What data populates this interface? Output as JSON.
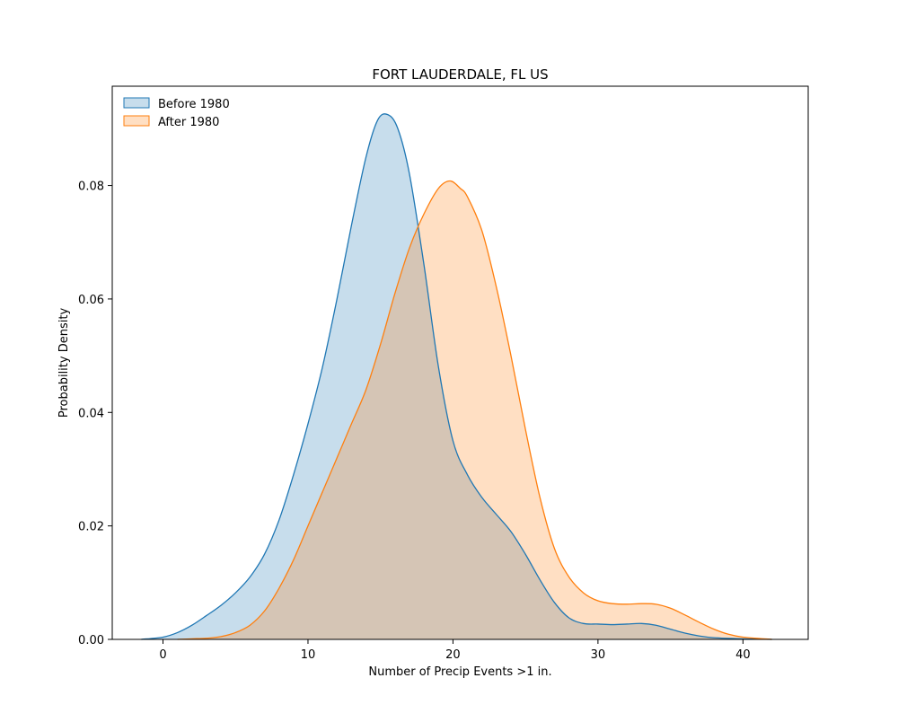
{
  "chart_data": {
    "type": "area",
    "title": "FORT LAUDERDALE, FL US",
    "xlabel": "Number of Precip Events >1 in.",
    "ylabel": "Probability Density",
    "xlim": [
      -3.5,
      44.5
    ],
    "ylim": [
      0,
      0.0975
    ],
    "x_ticks": [
      0,
      10,
      20,
      30,
      40
    ],
    "y_ticks": [
      0.0,
      0.02,
      0.04,
      0.06,
      0.08
    ],
    "x_tick_labels": [
      "0",
      "10",
      "20",
      "30",
      "40"
    ],
    "y_tick_labels": [
      "0.00",
      "0.02",
      "0.04",
      "0.06",
      "0.08"
    ],
    "grid": false,
    "legend": "top-left",
    "series": [
      {
        "name": "Before 1980",
        "color": "#1f77b4",
        "x": [
          -1.5,
          0,
          1,
          2,
          3,
          4,
          5,
          6,
          7,
          8,
          9,
          10,
          11,
          12,
          13,
          14,
          14.8,
          15.5,
          16.2,
          17,
          18,
          19,
          20,
          21,
          22,
          23,
          24,
          25,
          26,
          27,
          28,
          29,
          30,
          31,
          32,
          33,
          34,
          35,
          36,
          37,
          38,
          40,
          42
        ],
        "y": [
          0.0,
          0.0004,
          0.0012,
          0.0025,
          0.0042,
          0.006,
          0.0082,
          0.011,
          0.015,
          0.021,
          0.029,
          0.038,
          0.048,
          0.06,
          0.073,
          0.085,
          0.0915,
          0.0925,
          0.09,
          0.082,
          0.066,
          0.048,
          0.035,
          0.029,
          0.025,
          0.022,
          0.019,
          0.015,
          0.0105,
          0.0065,
          0.0038,
          0.0028,
          0.0027,
          0.0026,
          0.0027,
          0.0028,
          0.0025,
          0.0018,
          0.0011,
          0.0006,
          0.0003,
          0.0001,
          0.0
        ]
      },
      {
        "name": "After 1980",
        "color": "#ff7f0e",
        "x": [
          1,
          2,
          3,
          4,
          5,
          6,
          7,
          8,
          9,
          10,
          11,
          12,
          13,
          14,
          15,
          16,
          17,
          18,
          19,
          19.8,
          20.5,
          21,
          22,
          23,
          24,
          25,
          26,
          27,
          28,
          29,
          30,
          31,
          32,
          33,
          34,
          35,
          36,
          37,
          38,
          39,
          40,
          42
        ],
        "y": [
          0.0,
          0.0001,
          0.0002,
          0.0005,
          0.0012,
          0.0025,
          0.005,
          0.009,
          0.014,
          0.02,
          0.026,
          0.032,
          0.038,
          0.044,
          0.052,
          0.061,
          0.069,
          0.075,
          0.0795,
          0.0808,
          0.0795,
          0.078,
          0.072,
          0.062,
          0.05,
          0.037,
          0.025,
          0.016,
          0.011,
          0.0082,
          0.0068,
          0.0063,
          0.0062,
          0.0063,
          0.0062,
          0.0055,
          0.0043,
          0.003,
          0.0018,
          0.0009,
          0.0004,
          0.0
        ]
      }
    ]
  }
}
